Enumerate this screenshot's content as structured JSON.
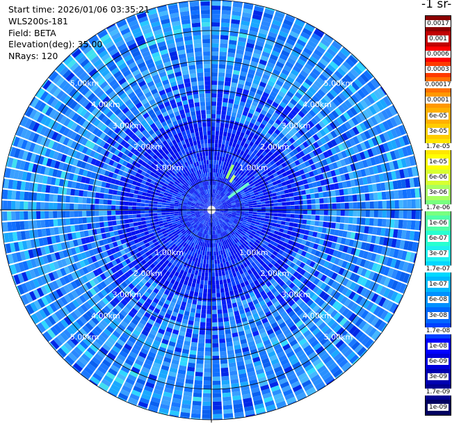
{
  "header": {
    "start_time": "Start time: 2026/01/06 03:35:21",
    "instrument": "WLS200s-181",
    "field": "Field: BETA",
    "elevation": "Elevation(deg): 35.00",
    "nrays": "NRays: 120"
  },
  "units_title": "-1 sr-",
  "range_labels": [
    "1.00km",
    "2.00km",
    "3.00km",
    "4.00km",
    "5.00km"
  ],
  "colorbar": {
    "labels": [
      "0.0017",
      "0.001",
      "0.0006",
      "0.0003",
      "0.00017",
      "0.0001",
      "6e-05",
      "3e-05",
      "1.7e-05",
      "1e-05",
      "6e-06",
      "3e-06",
      "1.7e-06",
      "1e-06",
      "6e-07",
      "3e-07",
      "1.7e-07",
      "1e-07",
      "6e-08",
      "3e-08",
      "1.7e-08",
      "1e-08",
      "6e-09",
      "3e-09",
      "1.7e-09",
      "1e-09"
    ],
    "colors": [
      "#8b0000",
      "#c00000",
      "#ff0000",
      "#ff3a00",
      "#ff7000",
      "#ff9800",
      "#ffb000",
      "#ffcc00",
      "#ffe600",
      "#ffff00",
      "#d8ff30",
      "#a8ff60",
      "#78ff80",
      "#50ffa8",
      "#28ffd0",
      "#20f0f0",
      "#00d8ff",
      "#00b8ff",
      "#0090ff",
      "#0066ff",
      "#0040ff",
      "#0000ff",
      "#0000d8",
      "#0000b0",
      "#000090",
      "#000060"
    ]
  }
}
